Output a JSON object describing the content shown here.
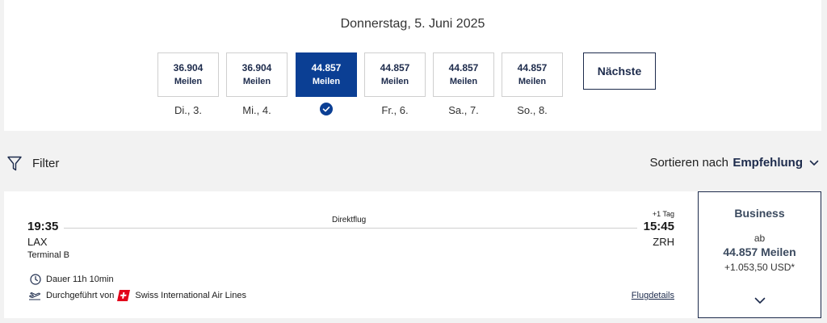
{
  "date_selector": {
    "title": "Donnerstag, 5. Juni 2025",
    "days": [
      {
        "miles": "36.904",
        "unit": "Meilen",
        "label": "Di., 3.",
        "selected": false
      },
      {
        "miles": "36.904",
        "unit": "Meilen",
        "label": "Mi., 4.",
        "selected": false
      },
      {
        "miles": "44.857",
        "unit": "Meilen",
        "label": "",
        "selected": true
      },
      {
        "miles": "44.857",
        "unit": "Meilen",
        "label": "Fr., 6.",
        "selected": false
      },
      {
        "miles": "44.857",
        "unit": "Meilen",
        "label": "Sa., 7.",
        "selected": false
      },
      {
        "miles": "44.857",
        "unit": "Meilen",
        "label": "So., 8.",
        "selected": false
      }
    ],
    "next_label": "Nächste"
  },
  "toolbar": {
    "filter_label": "Filter",
    "sort_label": "Sortieren nach",
    "sort_value": "Empfehlung"
  },
  "flight": {
    "departure_time": "19:35",
    "departure_airport": "LAX",
    "departure_terminal": "Terminal B",
    "flight_type": "Direktflug",
    "day_offset": "+1 Tag",
    "arrival_time": "15:45",
    "arrival_airport": "ZRH",
    "duration": "Dauer 11h 10min",
    "operated_by_label": "Durchgeführt von",
    "airline": "Swiss International Air Lines",
    "details_link": "Flugdetails"
  },
  "fare": {
    "class": "Business",
    "from_label": "ab",
    "miles": "44.857 Meilen",
    "surcharge": "+1.053,50 USD*"
  },
  "colors": {
    "accent": "#0b3f94",
    "navy": "#1d2b4c",
    "swiss_red": "#e2001a"
  }
}
